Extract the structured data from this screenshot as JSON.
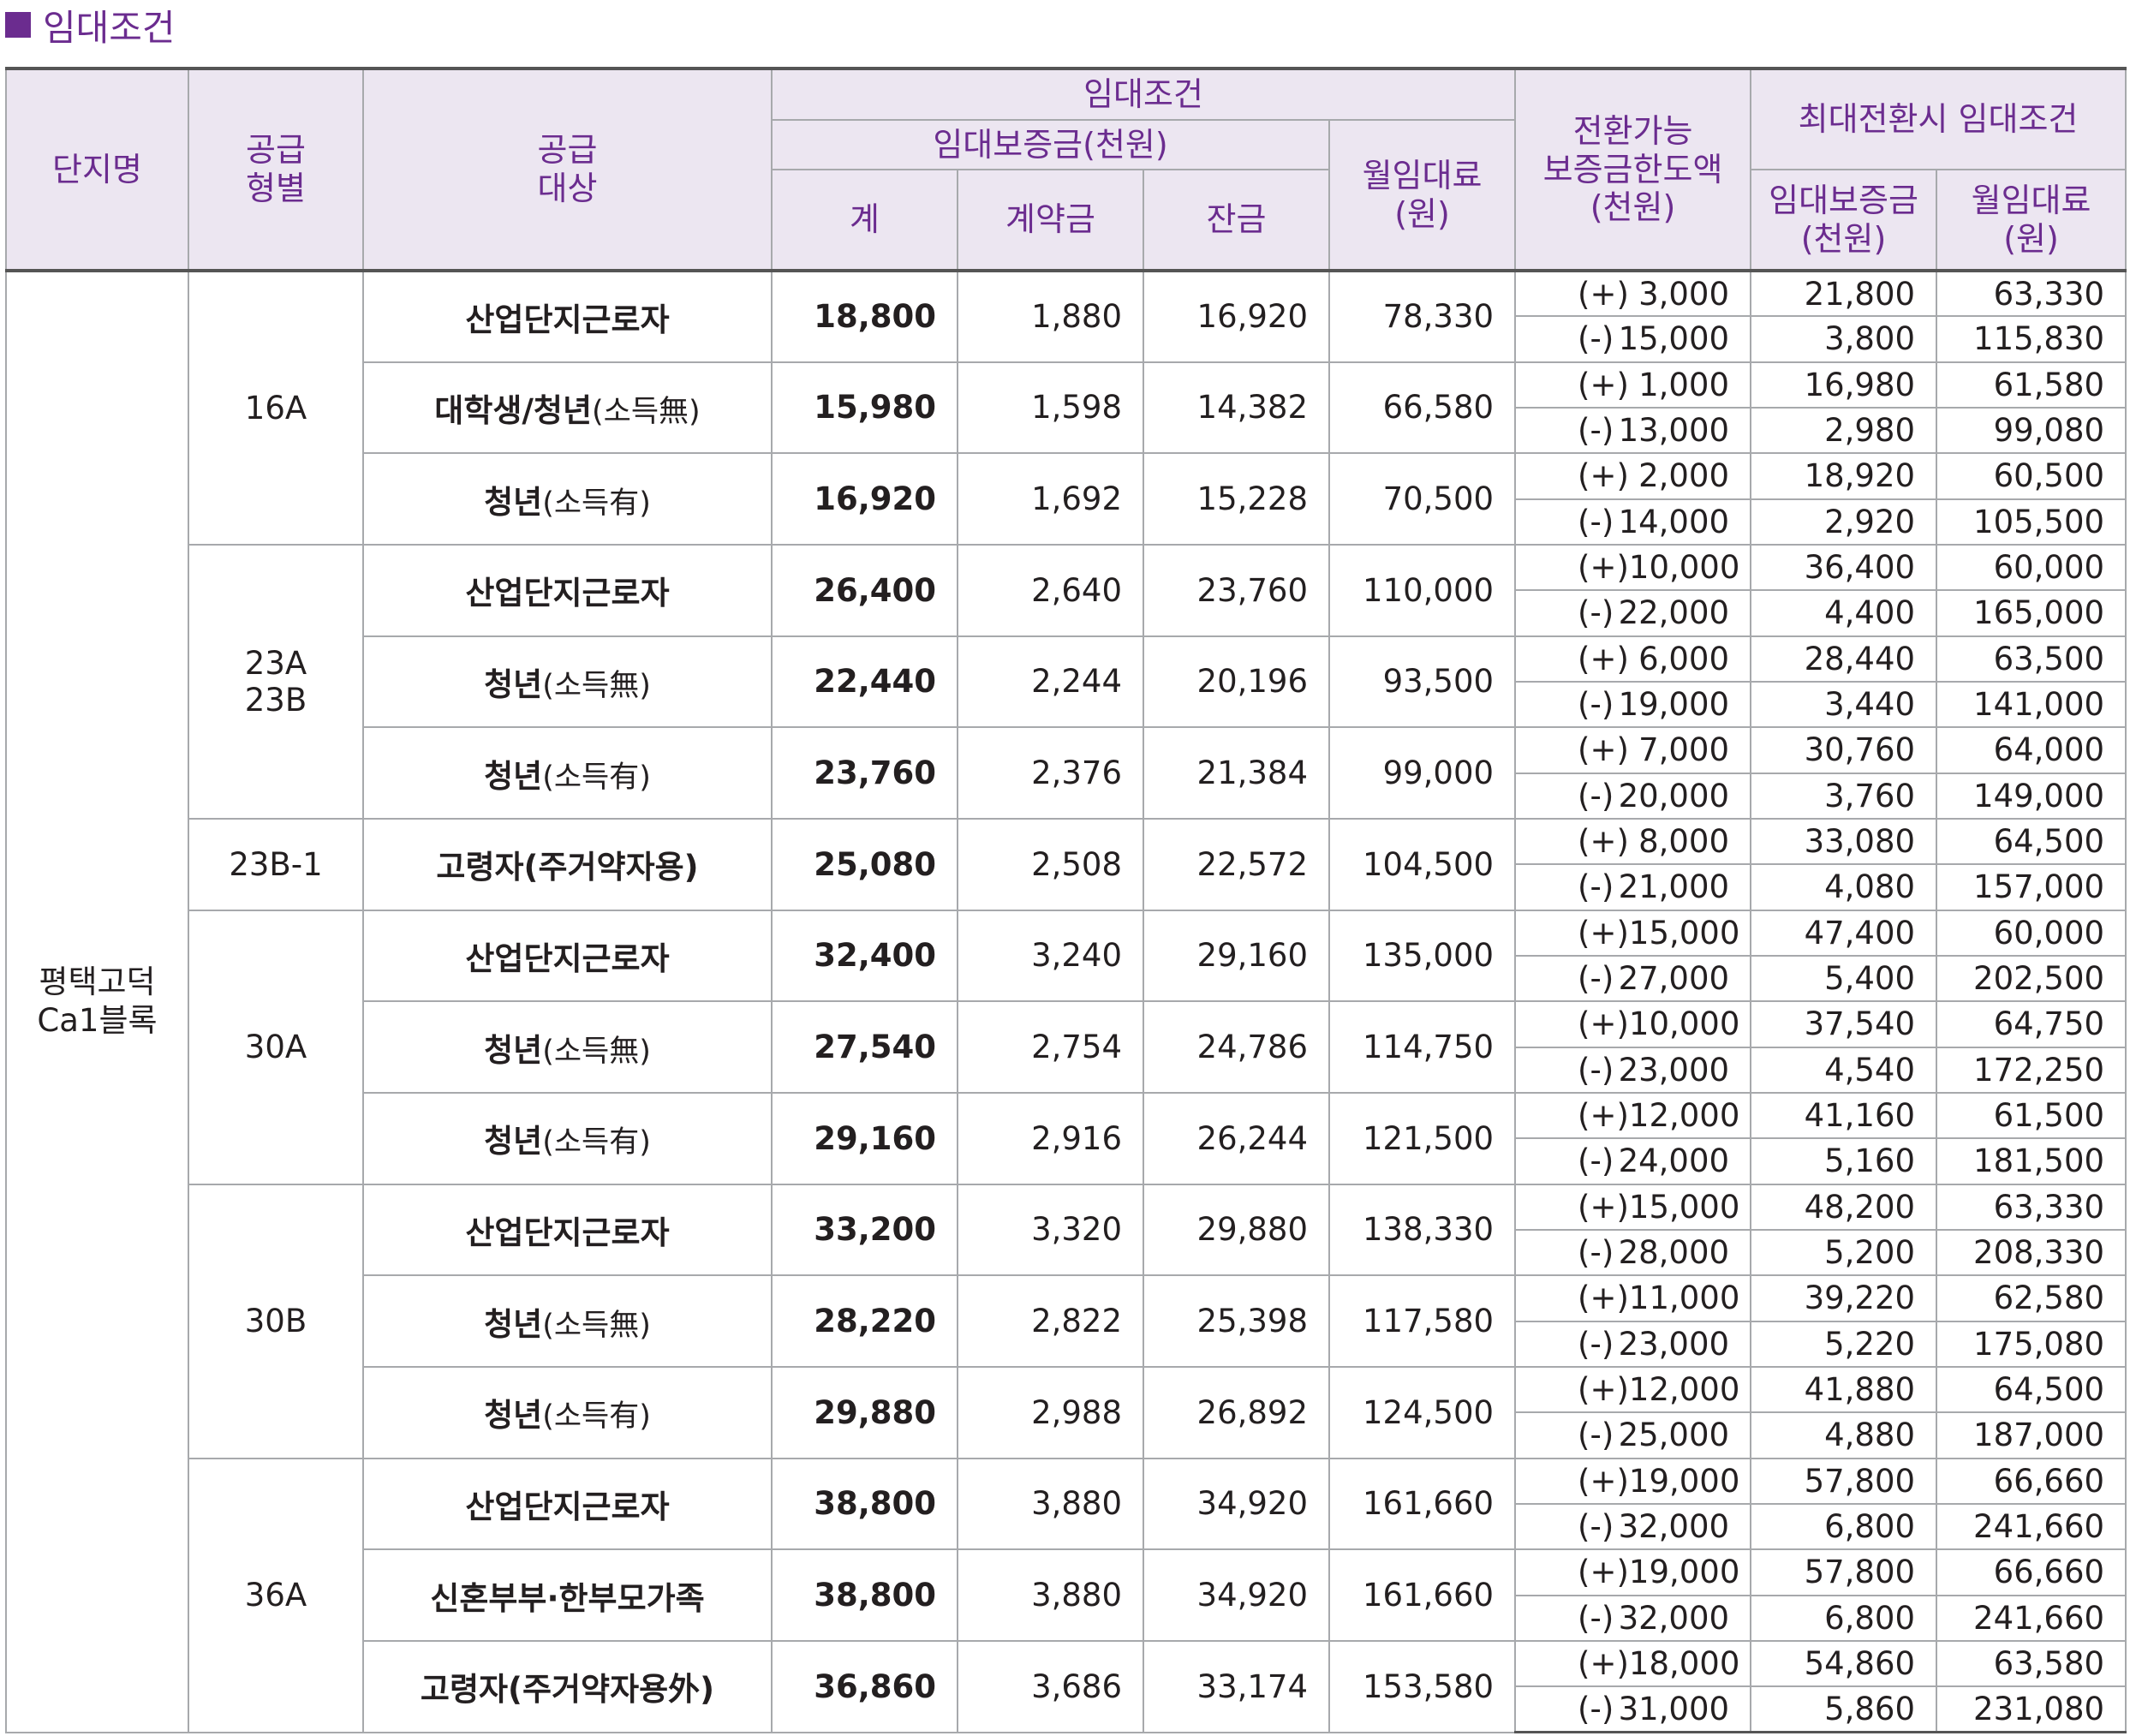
{
  "section_title": "임대조건",
  "header": {
    "complex_name": "단지명",
    "supply_type": "공급\n형별",
    "supply_target": "공급\n대상",
    "rental_conditions": "임대조건",
    "deposit_group": "임대보증금(천원)",
    "deposit_total": "계",
    "deposit_contract": "계약금",
    "deposit_balance": "잔금",
    "monthly_rent": "월임대료\n(원)",
    "conversion_limit": "전환가능\n보증금한도액\n(천원)",
    "max_conversion": "최대전환시 임대조건",
    "max_deposit": "임대보증금\n(천원)",
    "max_rent": "월임대료\n(원)"
  },
  "complex": "평택고덕\nCa1블록",
  "types": [
    {
      "type": "16A",
      "rows": [
        {
          "target": "산업단지근로자",
          "note": "",
          "total": "18,800",
          "contract": "1,880",
          "balance": "16,920",
          "rent": "78,330",
          "plus": {
            "sign": "(+)",
            "limit": "3,000",
            "deposit": "21,800",
            "rent": "63,330"
          },
          "minus": {
            "sign": "(-)",
            "limit": "15,000",
            "deposit": "3,800",
            "rent": "115,830"
          }
        },
        {
          "target": "대학생/청년",
          "note": "(소득無)",
          "total": "15,980",
          "contract": "1,598",
          "balance": "14,382",
          "rent": "66,580",
          "plus": {
            "sign": "(+)",
            "limit": "1,000",
            "deposit": "16,980",
            "rent": "61,580"
          },
          "minus": {
            "sign": "(-)",
            "limit": "13,000",
            "deposit": "2,980",
            "rent": "99,080"
          }
        },
        {
          "target": "청년",
          "note": "(소득有)",
          "total": "16,920",
          "contract": "1,692",
          "balance": "15,228",
          "rent": "70,500",
          "plus": {
            "sign": "(+)",
            "limit": "2,000",
            "deposit": "18,920",
            "rent": "60,500"
          },
          "minus": {
            "sign": "(-)",
            "limit": "14,000",
            "deposit": "2,920",
            "rent": "105,500"
          }
        }
      ]
    },
    {
      "type": "23A\n23B",
      "rows": [
        {
          "target": "산업단지근로자",
          "note": "",
          "total": "26,400",
          "contract": "2,640",
          "balance": "23,760",
          "rent": "110,000",
          "plus": {
            "sign": "(+)",
            "limit": "10,000",
            "deposit": "36,400",
            "rent": "60,000"
          },
          "minus": {
            "sign": "(-)",
            "limit": "22,000",
            "deposit": "4,400",
            "rent": "165,000"
          }
        },
        {
          "target": "청년",
          "note": "(소득無)",
          "total": "22,440",
          "contract": "2,244",
          "balance": "20,196",
          "rent": "93,500",
          "plus": {
            "sign": "(+)",
            "limit": "6,000",
            "deposit": "28,440",
            "rent": "63,500"
          },
          "minus": {
            "sign": "(-)",
            "limit": "19,000",
            "deposit": "3,440",
            "rent": "141,000"
          }
        },
        {
          "target": "청년",
          "note": "(소득有)",
          "total": "23,760",
          "contract": "2,376",
          "balance": "21,384",
          "rent": "99,000",
          "plus": {
            "sign": "(+)",
            "limit": "7,000",
            "deposit": "30,760",
            "rent": "64,000"
          },
          "minus": {
            "sign": "(-)",
            "limit": "20,000",
            "deposit": "3,760",
            "rent": "149,000"
          }
        }
      ]
    },
    {
      "type": "23B-1",
      "rows": [
        {
          "target": "고령자(주거약자용)",
          "note": "",
          "total": "25,080",
          "contract": "2,508",
          "balance": "22,572",
          "rent": "104,500",
          "plus": {
            "sign": "(+)",
            "limit": "8,000",
            "deposit": "33,080",
            "rent": "64,500"
          },
          "minus": {
            "sign": "(-)",
            "limit": "21,000",
            "deposit": "4,080",
            "rent": "157,000"
          }
        }
      ]
    },
    {
      "type": "30A",
      "rows": [
        {
          "target": "산업단지근로자",
          "note": "",
          "total": "32,400",
          "contract": "3,240",
          "balance": "29,160",
          "rent": "135,000",
          "plus": {
            "sign": "(+)",
            "limit": "15,000",
            "deposit": "47,400",
            "rent": "60,000"
          },
          "minus": {
            "sign": "(-)",
            "limit": "27,000",
            "deposit": "5,400",
            "rent": "202,500"
          }
        },
        {
          "target": "청년",
          "note": "(소득無)",
          "total": "27,540",
          "contract": "2,754",
          "balance": "24,786",
          "rent": "114,750",
          "plus": {
            "sign": "(+)",
            "limit": "10,000",
            "deposit": "37,540",
            "rent": "64,750"
          },
          "minus": {
            "sign": "(-)",
            "limit": "23,000",
            "deposit": "4,540",
            "rent": "172,250"
          }
        },
        {
          "target": "청년",
          "note": "(소득有)",
          "total": "29,160",
          "contract": "2,916",
          "balance": "26,244",
          "rent": "121,500",
          "plus": {
            "sign": "(+)",
            "limit": "12,000",
            "deposit": "41,160",
            "rent": "61,500"
          },
          "minus": {
            "sign": "(-)",
            "limit": "24,000",
            "deposit": "5,160",
            "rent": "181,500"
          }
        }
      ]
    },
    {
      "type": "30B",
      "rows": [
        {
          "target": "산업단지근로자",
          "note": "",
          "total": "33,200",
          "contract": "3,320",
          "balance": "29,880",
          "rent": "138,330",
          "plus": {
            "sign": "(+)",
            "limit": "15,000",
            "deposit": "48,200",
            "rent": "63,330"
          },
          "minus": {
            "sign": "(-)",
            "limit": "28,000",
            "deposit": "5,200",
            "rent": "208,330"
          }
        },
        {
          "target": "청년",
          "note": "(소득無)",
          "total": "28,220",
          "contract": "2,822",
          "balance": "25,398",
          "rent": "117,580",
          "plus": {
            "sign": "(+)",
            "limit": "11,000",
            "deposit": "39,220",
            "rent": "62,580"
          },
          "minus": {
            "sign": "(-)",
            "limit": "23,000",
            "deposit": "5,220",
            "rent": "175,080"
          }
        },
        {
          "target": "청년",
          "note": "(소득有)",
          "total": "29,880",
          "contract": "2,988",
          "balance": "26,892",
          "rent": "124,500",
          "plus": {
            "sign": "(+)",
            "limit": "12,000",
            "deposit": "41,880",
            "rent": "64,500"
          },
          "minus": {
            "sign": "(-)",
            "limit": "25,000",
            "deposit": "4,880",
            "rent": "187,000"
          }
        }
      ]
    },
    {
      "type": "36A",
      "rows": [
        {
          "target": "산업단지근로자",
          "note": "",
          "total": "38,800",
          "contract": "3,880",
          "balance": "34,920",
          "rent": "161,660",
          "plus": {
            "sign": "(+)",
            "limit": "19,000",
            "deposit": "57,800",
            "rent": "66,660"
          },
          "minus": {
            "sign": "(-)",
            "limit": "32,000",
            "deposit": "6,800",
            "rent": "241,660"
          }
        },
        {
          "target": "신혼부부·한부모가족",
          "note": "",
          "total": "38,800",
          "contract": "3,880",
          "balance": "34,920",
          "rent": "161,660",
          "plus": {
            "sign": "(+)",
            "limit": "19,000",
            "deposit": "57,800",
            "rent": "66,660"
          },
          "minus": {
            "sign": "(-)",
            "limit": "32,000",
            "deposit": "6,800",
            "rent": "241,660"
          }
        },
        {
          "target": "고령자(주거약자용外)",
          "note": "",
          "total": "36,860",
          "contract": "3,686",
          "balance": "33,174",
          "rent": "153,580",
          "plus": {
            "sign": "(+)",
            "limit": "18,000",
            "deposit": "54,860",
            "rent": "63,580"
          },
          "minus": {
            "sign": "(-)",
            "limit": "31,000",
            "deposit": "5,860",
            "rent": "231,080"
          }
        }
      ]
    }
  ],
  "colors": {
    "accent": "#6b2c8f",
    "header_bg": "#ece6f1",
    "grid": "#a7a9ac",
    "text": "#231f20"
  }
}
